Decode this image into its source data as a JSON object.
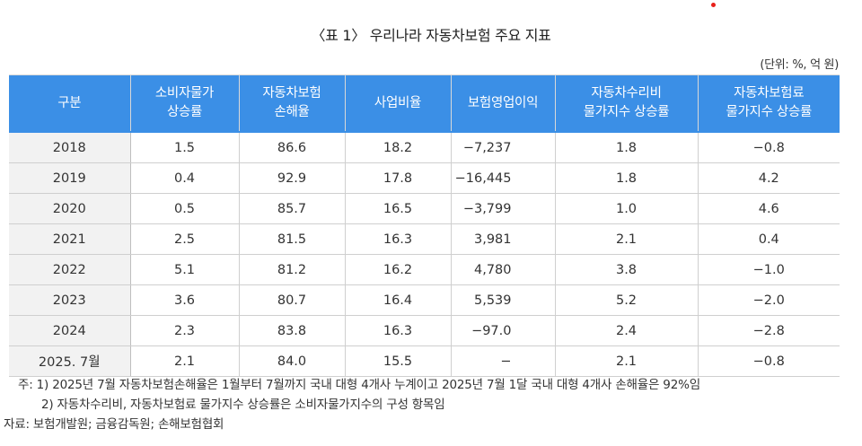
{
  "title": "〈표 1〉 우리나라 자동차보험 주요 지표",
  "unit": "(단위: %, 억 원)",
  "table": {
    "headers": [
      [
        "구분"
      ],
      [
        "소비자물가",
        "상승률"
      ],
      [
        "자동차보험",
        "손해율"
      ],
      [
        "사업비율"
      ],
      [
        "보험영업이익"
      ],
      [
        "자동차수리비",
        "물가지수 상승률"
      ],
      [
        "자동차보험료",
        "물가지수 상승률"
      ]
    ],
    "rows": [
      [
        "2018",
        "1.5",
        "86.6",
        "18.2",
        "−7,237",
        "1.8",
        "−0.8"
      ],
      [
        "2019",
        "0.4",
        "92.9",
        "17.8",
        "−16,445",
        "1.8",
        "4.2"
      ],
      [
        "2020",
        "0.5",
        "85.7",
        "16.5",
        "−3,799",
        "1.0",
        "4.6"
      ],
      [
        "2021",
        "2.5",
        "81.5",
        "16.3",
        "3,981",
        "2.1",
        "0.4"
      ],
      [
        "2022",
        "5.1",
        "81.2",
        "16.2",
        "4,780",
        "3.8",
        "−1.0"
      ],
      [
        "2023",
        "3.6",
        "80.7",
        "16.4",
        "5,539",
        "5.2",
        "−2.0"
      ],
      [
        "2024",
        "2.3",
        "83.8",
        "16.3",
        "−97.0",
        "2.4",
        "−2.8"
      ],
      [
        "2025. 7월",
        "2.1",
        "84.0",
        "15.5",
        "−",
        "2.1",
        "−0.8"
      ]
    ]
  },
  "notes": {
    "note1": "주: 1) 2025년 7월 자동차보험손해율은 1월부터 7월까지 국내 대형 4개사 누계이고 2025년 7월 1달 국내 대형 4개사 손해율은 92%임",
    "note2": "2) 자동차수리비, 자동차보험료 물가지수 상승률은 소비자물가지수의 구성 항목임",
    "source": "자료: 보험개발원; 금융감독원; 손해보험협회"
  },
  "colors": {
    "header_bg": "#3b8fe6",
    "header_text": "#ffffff",
    "first_col_bg": "#f2f2f2",
    "marker_dot": "#e8201a"
  }
}
